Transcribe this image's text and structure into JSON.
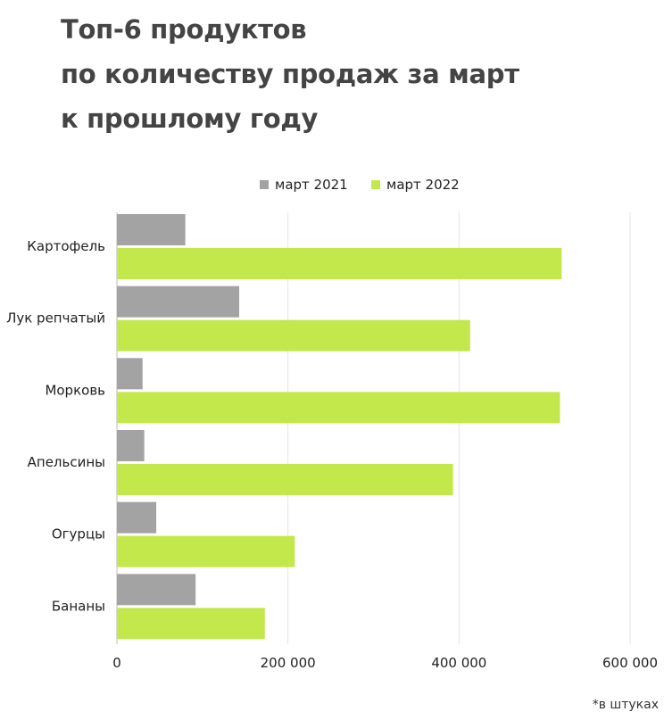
{
  "chart_data": {
    "type": "bar",
    "orientation": "horizontal",
    "title_lines": [
      "Топ-6 продуктов",
      "по количеству продаж за март",
      "к прошлому году"
    ],
    "categories": [
      "Картофель",
      "Лук репчатый",
      "Морковь",
      "Апельсины",
      "Огурцы",
      "Бананы"
    ],
    "series": [
      {
        "name": "март 2021",
        "color": "#a3a3a3",
        "values": [
          80000,
          143000,
          30000,
          32000,
          46000,
          92000
        ]
      },
      {
        "name": "март 2022",
        "color": "#c3e84b",
        "values": [
          520000,
          413000,
          518000,
          393000,
          208000,
          173000
        ]
      }
    ],
    "xlim": [
      0,
      600000
    ],
    "x_ticks": [
      0,
      200000,
      400000,
      600000
    ],
    "x_tick_labels": [
      "0",
      "200 000",
      "400 000",
      "600 000"
    ],
    "grid": true,
    "legend_position": "top",
    "footnote": "*в штуках"
  }
}
